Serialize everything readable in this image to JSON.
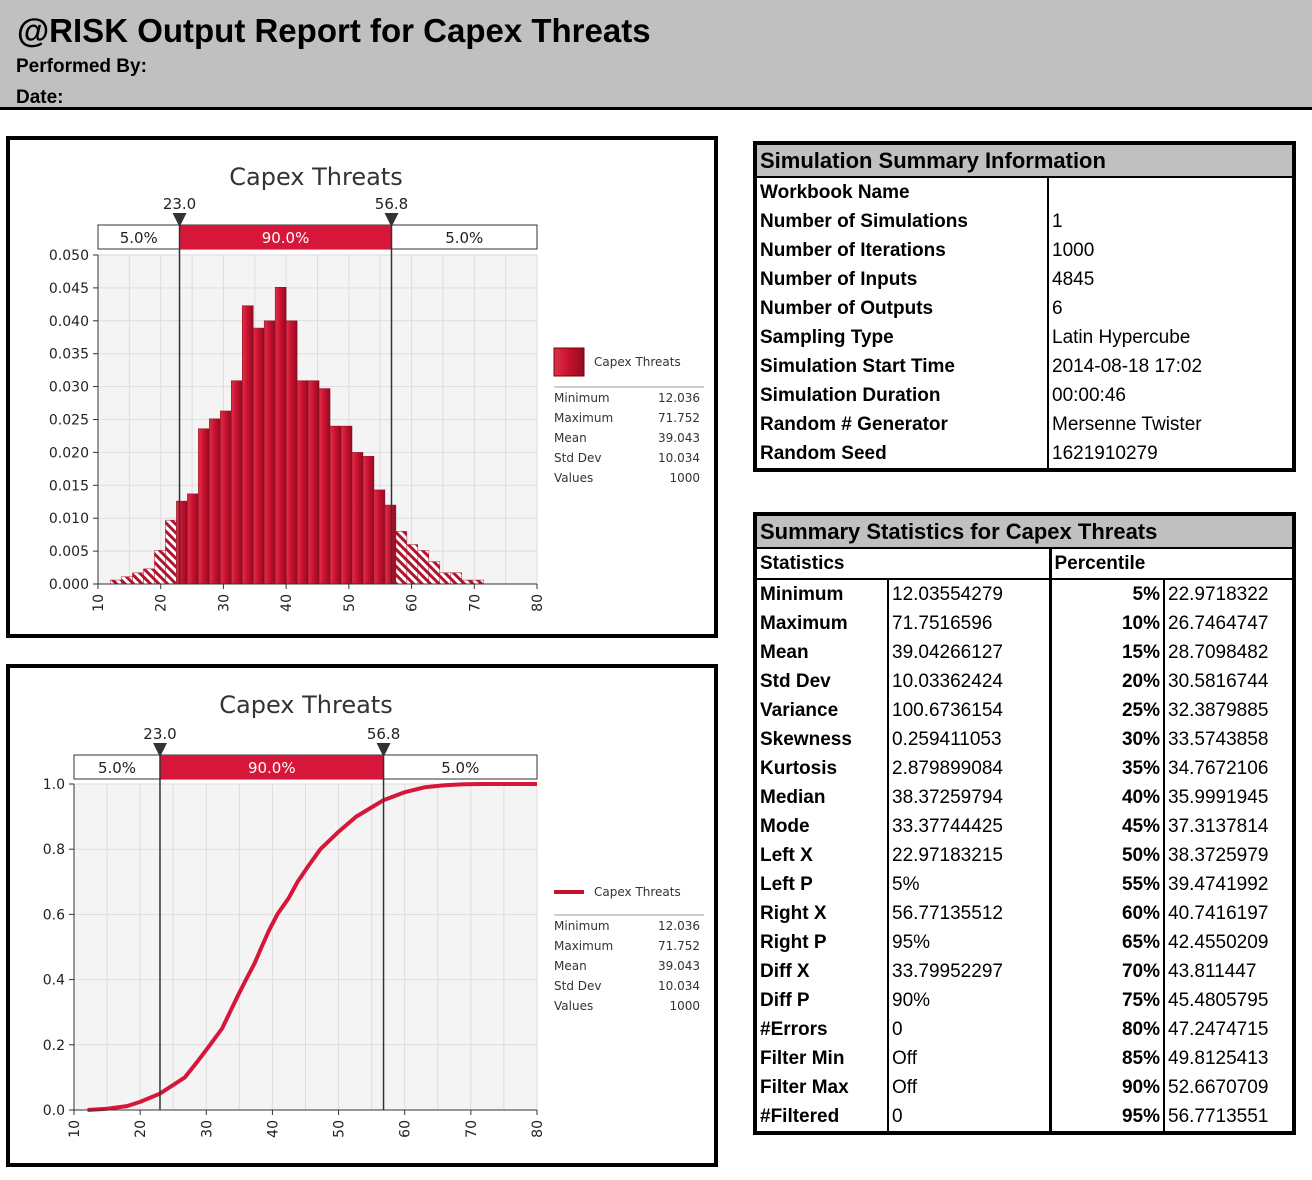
{
  "header": {
    "title": "@RISK Output Report for Capex Threats",
    "performed_by_label": "Performed By:",
    "date_label": "Date:"
  },
  "colors": {
    "accent": "#c8102e",
    "bar_dark": "#a0102a",
    "header_bg": "#c0c0c0"
  },
  "histogram": {
    "title": "Capex Threats",
    "left_marker": "23.0",
    "right_marker": "56.8",
    "band_left": "5.0%",
    "band_mid": "90.0%",
    "band_right": "5.0%",
    "legend_name": "Capex Threats",
    "stats": [
      {
        "label": "Minimum",
        "value": "12.036"
      },
      {
        "label": "Maximum",
        "value": "71.752"
      },
      {
        "label": "Mean",
        "value": "39.043"
      },
      {
        "label": "Std Dev",
        "value": "10.034"
      },
      {
        "label": "Values",
        "value": "1000"
      }
    ]
  },
  "cdf": {
    "title": "Capex Threats",
    "left_marker": "23.0",
    "right_marker": "56.8",
    "band_left": "5.0%",
    "band_mid": "90.0%",
    "band_right": "5.0%",
    "legend_name": "Capex Threats",
    "stats": [
      {
        "label": "Minimum",
        "value": "12.036"
      },
      {
        "label": "Maximum",
        "value": "71.752"
      },
      {
        "label": "Mean",
        "value": "39.043"
      },
      {
        "label": "Std Dev",
        "value": "10.034"
      },
      {
        "label": "Values",
        "value": "1000"
      }
    ]
  },
  "chart_data": [
    {
      "type": "bar",
      "title": "Capex Threats",
      "xlim": [
        10,
        80
      ],
      "ylim": [
        0,
        0.05
      ],
      "x_ticks": [
        "10",
        "20",
        "30",
        "40",
        "50",
        "60",
        "70",
        "80"
      ],
      "y_ticks": [
        "0.000",
        "0.005",
        "0.010",
        "0.015",
        "0.020",
        "0.025",
        "0.030",
        "0.035",
        "0.040",
        "0.045",
        "0.050"
      ],
      "bin_width": 1.75,
      "x": [
        12,
        13.75,
        15.5,
        17.25,
        19,
        20.75,
        22.5,
        24.25,
        26,
        27.75,
        29.5,
        31.25,
        33,
        34.75,
        36.5,
        38.25,
        40,
        41.75,
        43.5,
        45.25,
        47,
        48.75,
        50.5,
        52.25,
        54,
        55.75,
        57.5,
        59.25,
        61,
        62.75,
        64.5,
        66.25,
        68,
        69.75
      ],
      "values": [
        0.0006,
        0.0011,
        0.0017,
        0.0023,
        0.0051,
        0.0097,
        0.0126,
        0.0137,
        0.0236,
        0.0251,
        0.0263,
        0.0309,
        0.0423,
        0.0389,
        0.04,
        0.0451,
        0.04,
        0.0309,
        0.0309,
        0.0297,
        0.024,
        0.024,
        0.02,
        0.0194,
        0.0143,
        0.012,
        0.008,
        0.006,
        0.0051,
        0.0034,
        0.0017,
        0.0017,
        0.0006,
        0.0006
      ],
      "series": [
        {
          "name": "Capex Threats"
        }
      ],
      "legend": "right"
    },
    {
      "type": "line",
      "title": "Capex Threats",
      "xlim": [
        10,
        80
      ],
      "ylim": [
        0,
        1
      ],
      "x_ticks": [
        "10",
        "20",
        "30",
        "40",
        "50",
        "60",
        "70",
        "80"
      ],
      "y_ticks": [
        "0.0",
        "0.2",
        "0.4",
        "0.6",
        "0.8",
        "1.0"
      ],
      "x": [
        12.04,
        15,
        18,
        20,
        22.97,
        26.75,
        28.71,
        30.58,
        32.39,
        33.57,
        34.77,
        36.0,
        37.31,
        38.37,
        39.47,
        40.74,
        42.46,
        43.81,
        45.48,
        47.25,
        49.81,
        52.67,
        56.77,
        60,
        63,
        66,
        69,
        71.75,
        80
      ],
      "y": [
        0.0,
        0.004,
        0.012,
        0.025,
        0.05,
        0.1,
        0.15,
        0.2,
        0.25,
        0.3,
        0.35,
        0.4,
        0.45,
        0.5,
        0.55,
        0.6,
        0.65,
        0.7,
        0.75,
        0.8,
        0.85,
        0.9,
        0.95,
        0.975,
        0.99,
        0.996,
        0.999,
        1.0,
        1.0
      ],
      "series": [
        {
          "name": "Capex Threats"
        }
      ],
      "legend": "right"
    }
  ],
  "sim_summary": {
    "title": "Simulation Summary Information",
    "rows": [
      {
        "label": "Workbook Name",
        "value": ""
      },
      {
        "label": "Number of Simulations",
        "value": "1"
      },
      {
        "label": "Number of Iterations",
        "value": "1000"
      },
      {
        "label": "Number of Inputs",
        "value": "4845"
      },
      {
        "label": "Number of Outputs",
        "value": "6"
      },
      {
        "label": "Sampling Type",
        "value": "Latin Hypercube"
      },
      {
        "label": "Simulation Start Time",
        "value": "2014-08-18 17:02"
      },
      {
        "label": "Simulation Duration",
        "value": "00:00:46"
      },
      {
        "label": "Random # Generator",
        "value": "Mersenne Twister"
      },
      {
        "label": "Random Seed",
        "value": "1621910279"
      }
    ]
  },
  "summary_stats": {
    "title": "Summary Statistics for Capex Threats",
    "col_statistics": "Statistics",
    "col_percentile": "Percentile",
    "rows": [
      {
        "stat": "Minimum",
        "value": "12.03554279",
        "pct": "5%",
        "pval": "22.9718322"
      },
      {
        "stat": "Maximum",
        "value": "71.7516596",
        "pct": "10%",
        "pval": "26.7464747"
      },
      {
        "stat": "Mean",
        "value": "39.04266127",
        "pct": "15%",
        "pval": "28.7098482"
      },
      {
        "stat": "Std Dev",
        "value": "10.03362424",
        "pct": "20%",
        "pval": "30.5816744"
      },
      {
        "stat": "Variance",
        "value": "100.6736154",
        "pct": "25%",
        "pval": "32.3879885"
      },
      {
        "stat": "Skewness",
        "value": "0.259411053",
        "pct": "30%",
        "pval": "33.5743858"
      },
      {
        "stat": "Kurtosis",
        "value": "2.879899084",
        "pct": "35%",
        "pval": "34.7672106"
      },
      {
        "stat": "Median",
        "value": "38.37259794",
        "pct": "40%",
        "pval": "35.9991945"
      },
      {
        "stat": "Mode",
        "value": "33.37744425",
        "pct": "45%",
        "pval": "37.3137814"
      },
      {
        "stat": "Left X",
        "value": "22.97183215",
        "pct": "50%",
        "pval": "38.3725979"
      },
      {
        "stat": "Left P",
        "value": "5%",
        "pct": "55%",
        "pval": "39.4741992"
      },
      {
        "stat": "Right X",
        "value": "56.77135512",
        "pct": "60%",
        "pval": "40.7416197"
      },
      {
        "stat": "Right P",
        "value": "95%",
        "pct": "65%",
        "pval": "42.4550209"
      },
      {
        "stat": "Diff X",
        "value": "33.79952297",
        "pct": "70%",
        "pval": "43.811447"
      },
      {
        "stat": "Diff P",
        "value": "90%",
        "pct": "75%",
        "pval": "45.4805795"
      },
      {
        "stat": "#Errors",
        "value": "0",
        "pct": "80%",
        "pval": "47.2474715"
      },
      {
        "stat": "Filter Min",
        "value": "Off",
        "pct": "85%",
        "pval": "49.8125413"
      },
      {
        "stat": "Filter Max",
        "value": "Off",
        "pct": "90%",
        "pval": "52.6670709"
      },
      {
        "stat": "#Filtered",
        "value": "0",
        "pct": "95%",
        "pval": "56.7713551"
      }
    ]
  }
}
